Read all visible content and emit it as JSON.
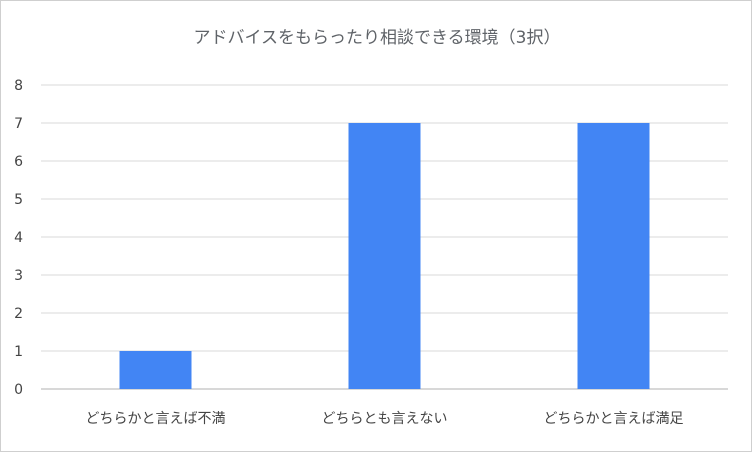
{
  "chart_data": {
    "type": "bar",
    "title": "アドバイスをもらったり相談できる環境（3択）",
    "categories": [
      "どちらかと言えば不満",
      "どちらとも言えない",
      "どちらかと言えば満足"
    ],
    "values": [
      1,
      7,
      7
    ],
    "ylim": [
      0,
      8
    ],
    "yticks": [
      0,
      1,
      2,
      3,
      4,
      5,
      6,
      7,
      8
    ],
    "xlabel": "",
    "ylabel": "",
    "grid": true,
    "bar_color": "#4285f4",
    "grid_color": "#d9d9d9"
  }
}
